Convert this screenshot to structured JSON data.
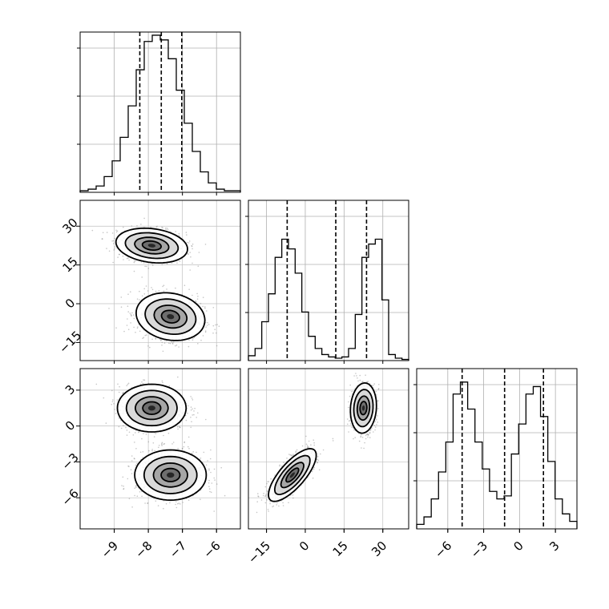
{
  "chart_data": {
    "type": "corner",
    "parameters": [
      {
        "index": 0,
        "range": [
          -10,
          -5.3
        ],
        "ticks": [
          -9,
          -8,
          -7,
          -6
        ]
      },
      {
        "index": 1,
        "range": [
          -22,
          40
        ],
        "ticks": [
          -15,
          0,
          15,
          30
        ]
      },
      {
        "index": 2,
        "range": [
          -8.6,
          4.8
        ],
        "ticks": [
          -6,
          -3,
          0,
          3
        ]
      }
    ],
    "quantiles": [
      [
        -8.25,
        -7.62,
        -7.02
      ],
      [
        -7,
        11.8,
        23.7
      ],
      [
        -4.8,
        -1.25,
        2.0
      ]
    ],
    "histograms": [
      {
        "param": 0,
        "counts": [
          1,
          2,
          4,
          10,
          20,
          35,
          55,
          78,
          96,
          100,
          97,
          85,
          65,
          44,
          26,
          13,
          6,
          2,
          1,
          1
        ],
        "ymax": 102
      },
      {
        "param": 1,
        "counts": [
          4,
          10,
          32,
          55,
          85,
          100,
          92,
          72,
          40,
          20,
          10,
          5,
          3,
          2,
          3,
          10,
          38,
          85,
          96,
          100,
          50,
          5,
          2,
          1
        ],
        "ymax": 132
      },
      {
        "param": 2,
        "counts": [
          3,
          8,
          20,
          38,
          58,
          90,
          98,
          80,
          58,
          40,
          25,
          20,
          22,
          50,
          70,
          90,
          95,
          75,
          45,
          20,
          10,
          5
        ],
        "ymax": 107
      }
    ],
    "clusters": [
      {
        "pair": [
          0,
          1
        ],
        "components": [
          {
            "mean": [
              -7.9,
              22.5
            ],
            "sd": [
              0.5,
              3.2
            ],
            "rho": -0.2
          },
          {
            "mean": [
              -7.35,
              -5
            ],
            "sd": [
              0.48,
              4.4
            ],
            "rho": -0.15
          }
        ]
      },
      {
        "pair": [
          0,
          2
        ],
        "components": [
          {
            "mean": [
              -7.9,
              1.5
            ],
            "sd": [
              0.48,
              0.95
            ],
            "rho": 0
          },
          {
            "mean": [
              -7.35,
              -4.1
            ],
            "sd": [
              0.5,
              1.0
            ],
            "rho": 0
          }
        ]
      },
      {
        "pair": [
          1,
          2
        ],
        "components": [
          {
            "mean": [
              22.5,
              1.5
            ],
            "sd": [
              2.4,
              1.0
            ],
            "rho": 0.1
          },
          {
            "mean": [
              -5,
              -4.1
            ],
            "sd": [
              4.4,
              1.05
            ],
            "rho": 0.75
          }
        ]
      }
    ],
    "contour_levels": [
      0.39,
      0.86,
      1.0
    ],
    "dashed_lines": "16-50-84 percentiles",
    "grid": true,
    "title": "",
    "labels": []
  }
}
